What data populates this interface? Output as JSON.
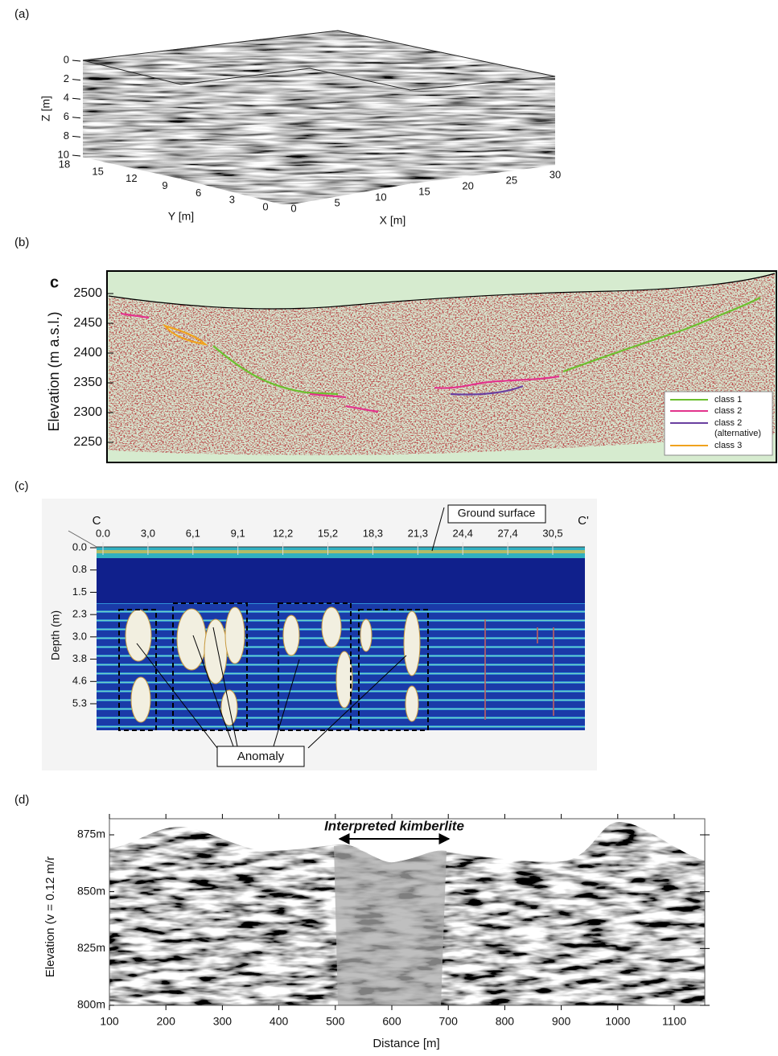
{
  "panels": [
    {
      "label": "(a)",
      "z_axis": {
        "title": "Z [m]",
        "ticks": [
          "0",
          "2",
          "4",
          "6",
          "8",
          "10"
        ]
      },
      "y_axis": {
        "title": "Y [m]",
        "ticks": [
          "18",
          "15",
          "12",
          "9",
          "6",
          "3",
          "0"
        ]
      },
      "x_axis": {
        "title": "X [m]",
        "ticks": [
          "0",
          "5",
          "10",
          "15",
          "20",
          "25",
          "30"
        ]
      }
    },
    {
      "label": "(b)",
      "panel_letter": "c",
      "y_axis": {
        "title": "Elevation (m a.s.l.)",
        "ticks": [
          "2500",
          "2450",
          "2400",
          "2350",
          "2300",
          "2250"
        ]
      },
      "legend": [
        {
          "name": "class 1",
          "color": "#6cbf2e"
        },
        {
          "name": "class 2",
          "color": "#e2338c"
        },
        {
          "name": "class 2",
          "detail": "(alternative)",
          "color": "#6a3fa0"
        },
        {
          "name": "class 3",
          "color": "#f0a21e"
        }
      ]
    },
    {
      "label": "(c)",
      "start_label": "C",
      "end_label": "C'",
      "x_axis": {
        "ticks": [
          "0.0",
          "3,0",
          "6,1",
          "9,1",
          "12,2",
          "15,2",
          "18,3",
          "21,3",
          "24,4",
          "27,4",
          "30,5"
        ]
      },
      "y_axis": {
        "title": "Depth (m)",
        "ticks": [
          "0.0",
          "0.8",
          "1.5",
          "2.3",
          "3.0",
          "3.8",
          "4.6",
          "5.3"
        ]
      },
      "annotations": {
        "ground": "Ground surface",
        "anomaly": "Anomaly"
      }
    },
    {
      "label": "(d)",
      "annotation": "Interpreted kimberlite",
      "y_axis": {
        "title": "Elevation (v = 0.12 m/r",
        "ticks": [
          "875m",
          "850m",
          "825m",
          "800m"
        ]
      },
      "x_axis": {
        "title": "Distance [m]",
        "ticks": [
          "100",
          "200",
          "300",
          "400",
          "500",
          "600",
          "700",
          "800",
          "900",
          "1000",
          "1100"
        ]
      }
    }
  ]
}
